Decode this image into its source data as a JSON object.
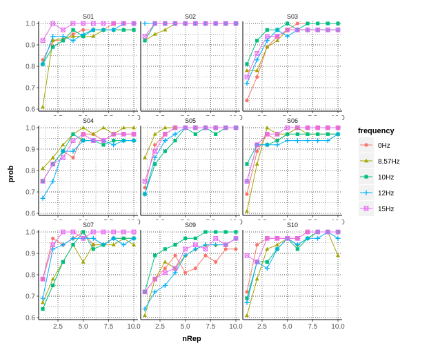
{
  "chart_data": {
    "type": "line",
    "facet_layout": "3x3 grid",
    "xlabel": "nRep",
    "ylabel": "prob",
    "xlim": [
      1,
      10
    ],
    "ylim": [
      0.6,
      1.0
    ],
    "x_ticks": [
      2.5,
      5.0,
      7.5,
      10.0
    ],
    "x_tick_labels": [
      "2.5",
      "5.0",
      "7.5",
      "10.0"
    ],
    "y_ticks": [
      0.6,
      0.7,
      0.8,
      0.9,
      1.0
    ],
    "y_tick_labels": [
      "0.6",
      "0.7",
      "0.8",
      "0.9",
      "1.0"
    ],
    "grid": "dotted",
    "legend": {
      "title": "frequency",
      "placement": "right",
      "entries": [
        "0Hz",
        "8.57Hz",
        "10Hz",
        "12Hz",
        "15Hz"
      ]
    },
    "series_styles": [
      {
        "name": "0Hz",
        "color": "#F8766D",
        "marker": "circle"
      },
      {
        "name": "8.57Hz",
        "color": "#A3A500",
        "marker": "triangle"
      },
      {
        "name": "10Hz",
        "color": "#00BF7D",
        "marker": "square"
      },
      {
        "name": "12Hz",
        "color": "#00B0F6",
        "marker": "plus"
      },
      {
        "name": "15Hz",
        "color": "#E76BF3",
        "marker": "boxcross"
      }
    ],
    "x": [
      1,
      2,
      3,
      4,
      5,
      6,
      7,
      8,
      9,
      10
    ],
    "panels": [
      {
        "title": "S01",
        "series": [
          {
            "name": "0Hz",
            "values": [
              0.83,
              0.92,
              0.92,
              0.95,
              0.97,
              0.97,
              0.97,
              1.0,
              1.0,
              1.0
            ]
          },
          {
            "name": "8.57Hz",
            "values": [
              0.61,
              0.92,
              0.93,
              0.94,
              0.94,
              0.94,
              0.97,
              0.97,
              0.97,
              0.97
            ]
          },
          {
            "name": "10Hz",
            "values": [
              0.81,
              0.89,
              0.92,
              0.97,
              0.94,
              0.97,
              0.97,
              0.97,
              0.97,
              0.97
            ]
          },
          {
            "name": "12Hz",
            "values": [
              0.81,
              0.94,
              0.94,
              0.92,
              0.95,
              0.97,
              0.97,
              0.97,
              1.0,
              1.0
            ]
          },
          {
            "name": "15Hz",
            "values": [
              0.92,
              1.0,
              0.97,
              1.0,
              1.0,
              1.0,
              1.0,
              1.0,
              1.0,
              1.0
            ]
          }
        ]
      },
      {
        "title": "S02",
        "series": [
          {
            "name": "0Hz",
            "values": [
              0.92,
              1.0,
              1.0,
              1.0,
              1.0,
              1.0,
              1.0,
              1.0,
              1.0,
              1.0
            ]
          },
          {
            "name": "8.57Hz",
            "values": [
              0.92,
              0.95,
              0.97,
              1.0,
              1.0,
              1.0,
              1.0,
              1.0,
              1.0,
              1.0
            ]
          },
          {
            "name": "10Hz",
            "values": [
              0.92,
              1.0,
              1.0,
              1.0,
              1.0,
              1.0,
              1.0,
              1.0,
              1.0,
              1.0
            ]
          },
          {
            "name": "12Hz",
            "values": [
              1.0,
              1.0,
              1.0,
              1.0,
              1.0,
              1.0,
              1.0,
              1.0,
              1.0,
              1.0
            ]
          },
          {
            "name": "15Hz",
            "values": [
              0.94,
              1.0,
              1.0,
              1.0,
              1.0,
              1.0,
              1.0,
              1.0,
              1.0,
              1.0
            ]
          }
        ]
      },
      {
        "title": "S03",
        "series": [
          {
            "name": "0Hz",
            "values": [
              0.64,
              0.75,
              0.89,
              0.94,
              0.97,
              1.0,
              1.0,
              1.0,
              1.0,
              1.0
            ]
          },
          {
            "name": "8.57Hz",
            "values": [
              0.78,
              0.78,
              0.89,
              0.92,
              0.97,
              0.97,
              0.97,
              0.97,
              0.97,
              0.97
            ]
          },
          {
            "name": "10Hz",
            "values": [
              0.81,
              0.92,
              0.97,
              0.97,
              1.0,
              0.97,
              1.0,
              1.0,
              1.0,
              1.0
            ]
          },
          {
            "name": "12Hz",
            "values": [
              0.72,
              0.83,
              0.92,
              0.97,
              0.94,
              0.97,
              0.97,
              0.97,
              0.97,
              0.97
            ]
          },
          {
            "name": "15Hz",
            "values": [
              0.75,
              0.86,
              0.94,
              0.94,
              0.97,
              0.97,
              0.97,
              0.97,
              0.97,
              0.97
            ]
          }
        ]
      },
      {
        "title": "S04",
        "series": [
          {
            "name": "0Hz",
            "values": [
              0.75,
              0.83,
              0.89,
              0.86,
              0.97,
              0.97,
              0.94,
              0.97,
              0.97,
              0.97
            ]
          },
          {
            "name": "8.57Hz",
            "values": [
              0.81,
              0.86,
              0.92,
              0.97,
              1.0,
              0.97,
              1.0,
              0.97,
              1.0,
              1.0
            ]
          },
          {
            "name": "10Hz",
            "values": [
              0.75,
              0.83,
              0.89,
              0.97,
              0.94,
              0.94,
              0.92,
              0.94,
              0.94,
              0.94
            ]
          },
          {
            "name": "12Hz",
            "values": [
              0.67,
              0.75,
              0.89,
              0.89,
              0.94,
              0.94,
              0.94,
              0.92,
              0.94,
              0.94
            ]
          },
          {
            "name": "15Hz",
            "values": [
              0.75,
              0.83,
              0.86,
              0.94,
              0.97,
              0.94,
              0.94,
              0.97,
              0.97,
              0.97
            ]
          }
        ]
      },
      {
        "title": "S05",
        "series": [
          {
            "name": "0Hz",
            "values": [
              0.72,
              0.92,
              0.97,
              1.0,
              1.0,
              1.0,
              1.0,
              1.0,
              1.0,
              1.0
            ]
          },
          {
            "name": "8.57Hz",
            "values": [
              0.86,
              0.97,
              1.0,
              1.0,
              1.0,
              1.0,
              1.0,
              1.0,
              1.0,
              1.0
            ]
          },
          {
            "name": "10Hz",
            "values": [
              0.69,
              0.83,
              0.89,
              0.94,
              1.0,
              0.97,
              1.0,
              0.97,
              1.0,
              1.0
            ]
          },
          {
            "name": "12Hz",
            "values": [
              0.69,
              0.86,
              0.94,
              0.97,
              1.0,
              1.0,
              1.0,
              1.0,
              1.0,
              1.0
            ]
          },
          {
            "name": "15Hz",
            "values": [
              0.75,
              0.89,
              0.97,
              1.0,
              1.0,
              1.0,
              1.0,
              1.0,
              1.0,
              1.0
            ]
          }
        ]
      },
      {
        "title": "S06",
        "series": [
          {
            "name": "0Hz",
            "values": [
              0.69,
              0.89,
              0.97,
              0.94,
              0.97,
              1.0,
              1.0,
              1.0,
              1.0,
              1.0
            ]
          },
          {
            "name": "8.57Hz",
            "values": [
              0.61,
              0.83,
              1.0,
              0.97,
              0.97,
              1.0,
              0.97,
              0.97,
              0.97,
              0.97
            ]
          },
          {
            "name": "10Hz",
            "values": [
              0.83,
              0.92,
              0.92,
              0.94,
              0.97,
              0.97,
              0.97,
              0.97,
              0.97,
              0.97
            ]
          },
          {
            "name": "12Hz",
            "values": [
              0.75,
              0.92,
              0.92,
              0.92,
              0.94,
              0.94,
              0.94,
              0.94,
              0.94,
              0.97
            ]
          },
          {
            "name": "15Hz",
            "values": [
              0.75,
              0.92,
              0.97,
              0.97,
              1.0,
              1.0,
              1.0,
              1.0,
              1.0,
              1.0
            ]
          }
        ]
      },
      {
        "title": "S07",
        "series": [
          {
            "name": "0Hz",
            "values": [
              0.78,
              0.97,
              0.94,
              0.97,
              1.0,
              0.94,
              0.94,
              0.97,
              0.97,
              0.97
            ]
          },
          {
            "name": "8.57Hz",
            "values": [
              0.67,
              0.78,
              0.86,
              0.94,
              0.86,
              0.94,
              0.94,
              0.94,
              0.97,
              0.94
            ]
          },
          {
            "name": "10Hz",
            "values": [
              0.64,
              0.75,
              0.86,
              0.94,
              1.0,
              0.92,
              0.94,
              0.97,
              0.97,
              0.97
            ]
          },
          {
            "name": "12Hz",
            "values": [
              0.69,
              0.92,
              0.94,
              0.97,
              0.97,
              0.97,
              0.94,
              0.97,
              0.94,
              0.97
            ]
          },
          {
            "name": "15Hz",
            "values": [
              0.78,
              0.94,
              1.0,
              1.0,
              0.97,
              1.0,
              1.0,
              1.0,
              1.0,
              1.0
            ]
          }
        ]
      },
      {
        "title": "S09",
        "series": [
          {
            "name": "0Hz",
            "values": [
              0.72,
              0.78,
              0.83,
              0.89,
              0.81,
              0.83,
              0.89,
              0.86,
              0.92,
              0.92
            ]
          },
          {
            "name": "8.57Hz",
            "values": [
              0.61,
              0.78,
              0.86,
              0.83,
              0.89,
              0.92,
              0.94,
              0.94,
              0.94,
              0.97
            ]
          },
          {
            "name": "10Hz",
            "values": [
              0.72,
              0.89,
              0.92,
              0.94,
              0.97,
              0.97,
              1.0,
              1.0,
              1.0,
              1.0
            ]
          },
          {
            "name": "12Hz",
            "values": [
              0.64,
              0.72,
              0.75,
              0.81,
              0.89,
              0.92,
              0.94,
              0.94,
              0.94,
              0.97
            ]
          },
          {
            "name": "15Hz",
            "values": [
              0.72,
              0.78,
              0.81,
              0.83,
              0.92,
              0.94,
              0.92,
              0.97,
              0.94,
              0.97
            ]
          }
        ]
      },
      {
        "title": "S10",
        "series": [
          {
            "name": "0Hz",
            "values": [
              0.72,
              0.94,
              0.97,
              0.97,
              0.97,
              0.97,
              1.0,
              1.0,
              1.0,
              1.0
            ]
          },
          {
            "name": "8.57Hz",
            "values": [
              0.61,
              0.78,
              0.92,
              0.94,
              0.97,
              0.94,
              0.97,
              1.0,
              1.0,
              0.89
            ]
          },
          {
            "name": "10Hz",
            "values": [
              0.69,
              0.86,
              0.86,
              0.92,
              0.97,
              0.92,
              0.97,
              1.0,
              1.0,
              1.0
            ]
          },
          {
            "name": "12Hz",
            "values": [
              0.67,
              0.86,
              0.83,
              0.92,
              0.97,
              0.94,
              0.97,
              0.97,
              1.0,
              0.97
            ]
          },
          {
            "name": "15Hz",
            "values": [
              0.89,
              0.86,
              0.97,
              0.97,
              0.97,
              0.97,
              1.0,
              1.0,
              1.0,
              1.0
            ]
          }
        ]
      }
    ]
  }
}
